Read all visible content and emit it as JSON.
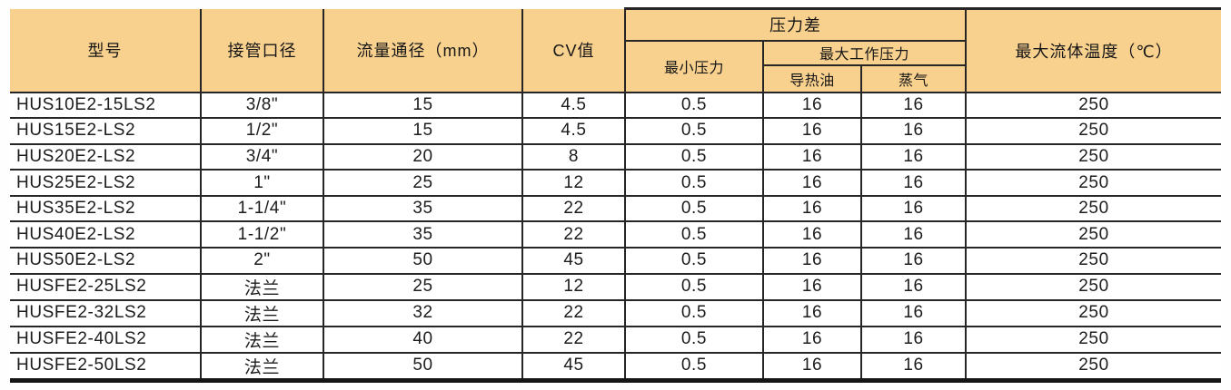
{
  "table": {
    "headers": {
      "model": "型号",
      "pipe_size": "接管口径",
      "flow_diameter": "流量通径（mm）",
      "cv": "CV值",
      "pressure_diff_group": "压力差",
      "min_pressure": "最小压力",
      "max_working_pressure_group": "最大工作压力",
      "heat_transfer_oil": "导热油",
      "steam": "蒸气",
      "max_fluid_temp": "最大流体温度（℃）"
    },
    "rows": [
      [
        "HUS10E2-15LS2",
        "3/8\"",
        "15",
        "4.5",
        "0.5",
        "16",
        "16",
        "250"
      ],
      [
        "HUS15E2-LS2",
        "1/2\"",
        "15",
        "4.5",
        "0.5",
        "16",
        "16",
        "250"
      ],
      [
        "HUS20E2-LS2",
        "3/4\"",
        "20",
        "8",
        "0.5",
        "16",
        "16",
        "250"
      ],
      [
        "HUS25E2-LS2",
        "1\"",
        "25",
        "12",
        "0.5",
        "16",
        "16",
        "250"
      ],
      [
        "HUS35E2-LS2",
        "1-1/4\"",
        "35",
        "22",
        "0.5",
        "16",
        "16",
        "250"
      ],
      [
        "HUS40E2-LS2",
        "1-1/2\"",
        "35",
        "22",
        "0.5",
        "16",
        "16",
        "250"
      ],
      [
        "HUS50E2-LS2",
        "2\"",
        "50",
        "45",
        "0.5",
        "16",
        "16",
        "250"
      ],
      [
        "HUSFE2-25LS2",
        "法兰",
        "25",
        "12",
        "0.5",
        "16",
        "16",
        "250"
      ],
      [
        "HUSFE2-32LS2",
        "法兰",
        "32",
        "22",
        "0.5",
        "16",
        "16",
        "250"
      ],
      [
        "HUSFE2-40LS2",
        "法兰",
        "40",
        "22",
        "0.5",
        "16",
        "16",
        "250"
      ],
      [
        "HUSFE2-50LS2",
        "法兰",
        "50",
        "45",
        "0.5",
        "16",
        "16",
        "250"
      ]
    ]
  },
  "colors": {
    "header_bg": "#f9d18f",
    "rule": "#262626",
    "text": "#1c1c1c"
  }
}
